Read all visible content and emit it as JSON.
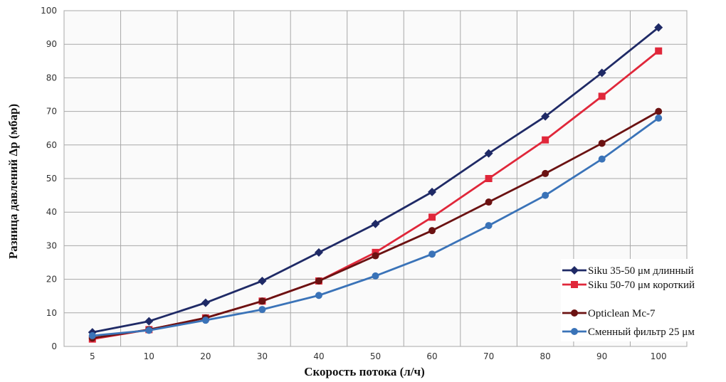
{
  "chart_data": {
    "type": "line",
    "xlabel": "Скорость потока (л/ч)",
    "ylabel": "Разница давлений Δр (мбар)",
    "categories": [
      "5",
      "10",
      "20",
      "30",
      "40",
      "50",
      "60",
      "70",
      "80",
      "90",
      "100"
    ],
    "ylim": [
      0,
      100
    ],
    "yticks": [
      0,
      10,
      20,
      30,
      40,
      50,
      60,
      70,
      80,
      90,
      100
    ],
    "grid": true,
    "legend_position": "bottom-right",
    "series": [
      {
        "name": "Siku 35-50 μм длинный",
        "color": "#1f2a66",
        "marker": "diamond",
        "values": [
          4.2,
          7.5,
          13,
          19.5,
          28,
          36.5,
          46,
          57.5,
          68.5,
          81.5,
          95
        ]
      },
      {
        "name": "Siku 50-70 μм короткий",
        "color": "#e0273a",
        "marker": "square",
        "values": [
          2.2,
          5,
          8.5,
          13.5,
          19.5,
          28,
          38.5,
          50,
          61.5,
          74.5,
          88
        ]
      },
      {
        "name": "Opticlean Mc-7",
        "color": "#6b1212",
        "marker": "circle",
        "values": [
          2.5,
          5,
          8.5,
          13.5,
          19.5,
          27,
          34.5,
          43,
          51.5,
          60.5,
          70
        ]
      },
      {
        "name": "Сменный фильтр 25  μм",
        "color": "#3a73b8",
        "marker": "circle",
        "values": [
          3.2,
          4.8,
          7.8,
          11,
          15.2,
          21,
          27.5,
          36,
          45,
          55.8,
          68
        ]
      }
    ]
  }
}
